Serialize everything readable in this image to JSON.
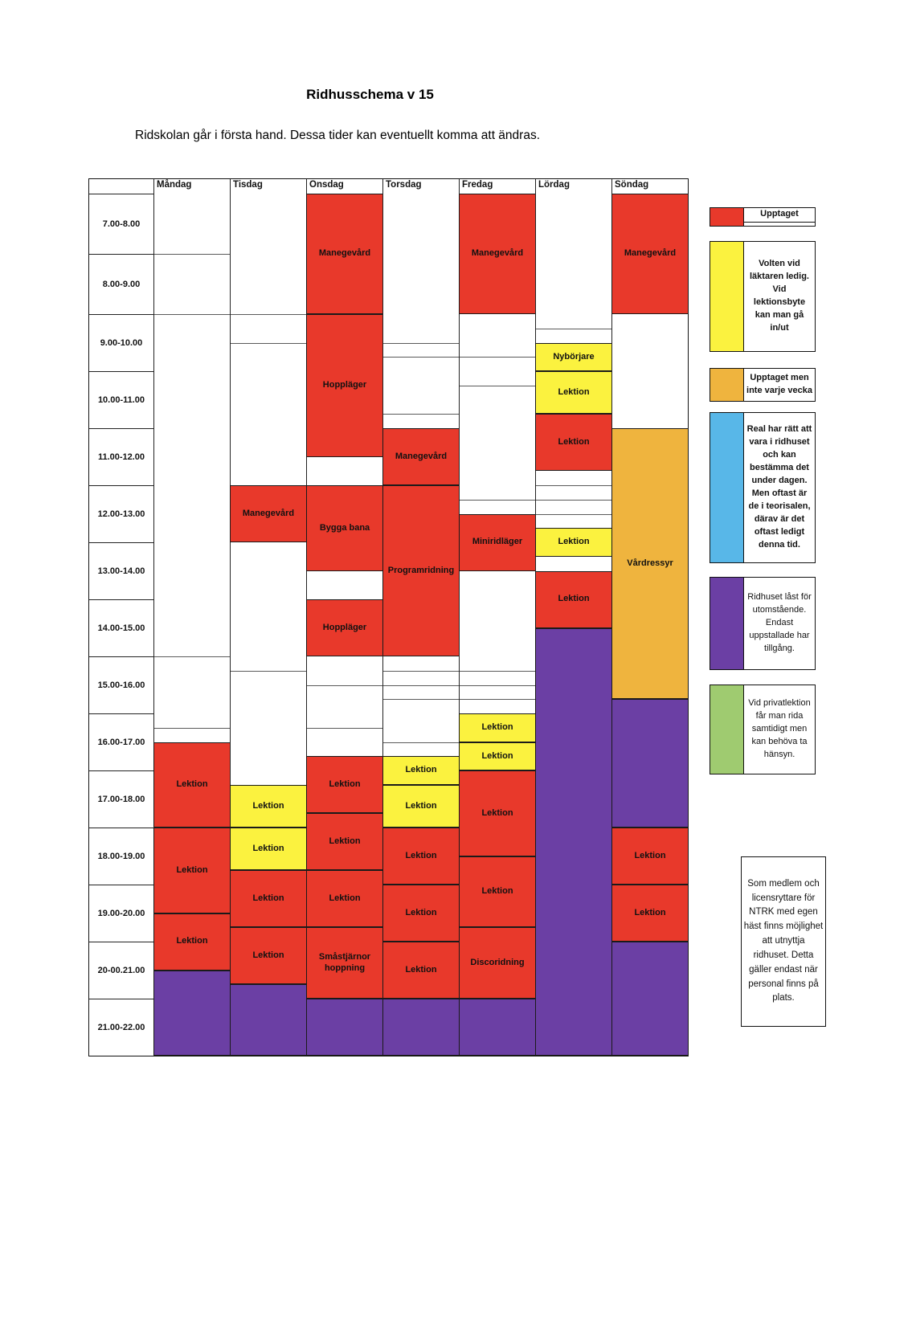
{
  "page": {
    "title": "Ridhusschema v 15",
    "subtitle": "Ridskolan går i första hand. Dessa tider kan eventuellt komma att ändras."
  },
  "colors": {
    "red": "#E8392B",
    "yellow": "#FBF23F",
    "orange": "#EFB43E",
    "purple": "#6B3FA4",
    "blue": "#58B7E8",
    "green": "#9FCB70"
  },
  "table": {
    "days": [
      "Måndag",
      "Tisdag",
      "Onsdag",
      "Torsdag",
      "Fredag",
      "Lördag",
      "Söndag"
    ],
    "time_rows": [
      "7.00-8.00",
      "8.00-9.00",
      "9.00-10.00",
      "10.00-11.00",
      "11.00-12.00",
      "12.00-13.00",
      "13.00-14.00",
      "14.00-15.00",
      "15.00-16.00",
      "16.00-17.00",
      "17.00-18.00",
      "18.00-19.00",
      "19.00-20.00",
      "20-00.21.00",
      "21.00-22.00"
    ]
  },
  "schedule": [
    {
      "day": "Måndag",
      "lines": [
        "8:00",
        "9:00",
        "15:00",
        "16:15"
      ],
      "events": [
        {
          "label": "Lektion",
          "color": "red",
          "start": "16:30",
          "end": "18:00"
        },
        {
          "label": "Lektion",
          "color": "red",
          "start": "18:00",
          "end": "19:30"
        },
        {
          "label": "Lektion",
          "color": "red",
          "start": "19:30",
          "end": "20:30"
        },
        {
          "label": "",
          "color": "purple",
          "start": "20:30",
          "end": "22:00"
        }
      ]
    },
    {
      "day": "Tisdag",
      "lines": [
        "9:00",
        "9:30",
        "15:15"
      ],
      "events": [
        {
          "label": "Manegevård",
          "color": "red",
          "start": "12:00",
          "end": "13:00"
        },
        {
          "label": "Lektion",
          "color": "yellow",
          "start": "17:15",
          "end": "18:00"
        },
        {
          "label": "Lektion",
          "color": "yellow",
          "start": "18:00",
          "end": "18:45"
        },
        {
          "label": "Lektion",
          "color": "red",
          "start": "18:45",
          "end": "19:45"
        },
        {
          "label": "Lektion",
          "color": "red",
          "start": "19:45",
          "end": "20:45"
        },
        {
          "label": "",
          "color": "purple",
          "start": "20:45",
          "end": "22:00"
        }
      ]
    },
    {
      "day": "Onsdag",
      "lines": [
        "15:30",
        "16:15"
      ],
      "events": [
        {
          "label": "Manegevård",
          "color": "red",
          "start": "7:00",
          "end": "9:00"
        },
        {
          "label": "Hoppläger",
          "color": "red",
          "start": "9:00",
          "end": "11:30"
        },
        {
          "label": "Bygga bana",
          "color": "red",
          "start": "12:00",
          "end": "13:30"
        },
        {
          "label": "Hoppläger",
          "color": "red",
          "start": "14:00",
          "end": "15:00"
        },
        {
          "label": "Lektion",
          "color": "red",
          "start": "16:45",
          "end": "17:45"
        },
        {
          "label": "Lektion",
          "color": "red",
          "start": "17:45",
          "end": "18:45"
        },
        {
          "label": "Lektion",
          "color": "red",
          "start": "18:45",
          "end": "19:45"
        },
        {
          "label": "Småstjärnor hoppning",
          "color": "red",
          "start": "19:45",
          "end": "21:00"
        },
        {
          "label": "",
          "color": "purple",
          "start": "21:00",
          "end": "22:00"
        }
      ]
    },
    {
      "day": "Torsdag",
      "lines": [
        "9:30",
        "9:45",
        "10:45",
        "15:15",
        "15:30",
        "15:45",
        "16:30"
      ],
      "events": [
        {
          "label": "Manegevård",
          "color": "red",
          "start": "11:00",
          "end": "12:00"
        },
        {
          "label": "Programridning",
          "color": "red",
          "start": "12:00",
          "end": "15:00"
        },
        {
          "label": "Lektion",
          "color": "yellow",
          "start": "16:45",
          "end": "17:15"
        },
        {
          "label": "Lektion",
          "color": "yellow",
          "start": "17:15",
          "end": "18:00"
        },
        {
          "label": "Lektion",
          "color": "red",
          "start": "18:00",
          "end": "19:00"
        },
        {
          "label": "Lektion",
          "color": "red",
          "start": "19:00",
          "end": "20:00"
        },
        {
          "label": "Lektion",
          "color": "red",
          "start": "20:00",
          "end": "21:00"
        },
        {
          "label": "",
          "color": "purple",
          "start": "21:00",
          "end": "22:00"
        }
      ]
    },
    {
      "day": "Fredag",
      "lines": [
        "9:45",
        "10:15",
        "12:15",
        "15:15",
        "15:30",
        "15:45"
      ],
      "events": [
        {
          "label": "Manegevård",
          "color": "red",
          "start": "7:00",
          "end": "9:00"
        },
        {
          "label": "Miniridläger",
          "color": "red",
          "start": "12:30",
          "end": "13:30"
        },
        {
          "label": "Lektion",
          "color": "yellow",
          "start": "16:00",
          "end": "16:30"
        },
        {
          "label": "Lektion",
          "color": "yellow",
          "start": "16:30",
          "end": "17:00"
        },
        {
          "label": "Lektion",
          "color": "red",
          "start": "17:00",
          "end": "18:30"
        },
        {
          "label": "Lektion",
          "color": "red",
          "start": "18:30",
          "end": "19:45"
        },
        {
          "label": "Discoridning",
          "color": "red",
          "start": "19:45",
          "end": "21:00"
        },
        {
          "label": "",
          "color": "purple",
          "start": "21:00",
          "end": "22:00"
        }
      ]
    },
    {
      "day": "Lördag",
      "lines": [
        "9:15",
        "12:00",
        "12:15",
        "12:30",
        "13:30"
      ],
      "events": [
        {
          "label": "Nybörjare",
          "color": "yellow",
          "start": "9:30",
          "end": "10:00"
        },
        {
          "label": "Lektion",
          "color": "yellow",
          "start": "10:00",
          "end": "10:45"
        },
        {
          "label": "Lektion",
          "color": "red",
          "start": "10:45",
          "end": "11:45"
        },
        {
          "label": "Lektion",
          "color": "yellow",
          "start": "12:45",
          "end": "13:15"
        },
        {
          "label": "Lektion",
          "color": "red",
          "start": "13:30",
          "end": "14:30"
        },
        {
          "label": "",
          "color": "purple",
          "start": "14:30",
          "end": "22:00"
        }
      ]
    },
    {
      "day": "Söndag",
      "lines": [],
      "events": [
        {
          "label": "Manegevård",
          "color": "red",
          "start": "7:00",
          "end": "9:00"
        },
        {
          "label": "Vårdressyr",
          "color": "orange",
          "start": "11:00",
          "end": "15:45"
        },
        {
          "label": "",
          "color": "purple",
          "start": "15:45",
          "end": "18:00"
        },
        {
          "label": "Lektion",
          "color": "red",
          "start": "18:00",
          "end": "19:00"
        },
        {
          "label": "Lektion",
          "color": "red",
          "start": "19:00",
          "end": "20:00"
        },
        {
          "label": "",
          "color": "purple",
          "start": "20:00",
          "end": "22:00"
        }
      ]
    }
  ],
  "legend": {
    "items": [
      {
        "color": "red",
        "bold": true,
        "text": "Upptaget"
      },
      {
        "color": "yellow",
        "bold": true,
        "text": "Volten vid läktaren ledig. Vid lektionsbyte kan man gå in/ut"
      },
      {
        "color": "orange",
        "bold": true,
        "text": "Upptaget men inte varje vecka"
      },
      {
        "color": "blue",
        "bold": true,
        "text": "Real har rätt att vara i ridhuset och kan bestämma det under dagen. Men oftast är de i teorisalen, därav är det oftast ledigt denna tid."
      },
      {
        "color": "purple",
        "bold": false,
        "text": "Ridhuset låst för utomstående. Endast uppstallade har tillgång."
      },
      {
        "color": "green",
        "bold": false,
        "text": "Vid privatlektion får man rida samtidigt men kan behöva ta hänsyn."
      }
    ],
    "note": "Som medlem och licensryttare för NTRK med egen häst finns möjlighet att utnyttja ridhuset. Detta gäller endast när personal finns på plats."
  }
}
